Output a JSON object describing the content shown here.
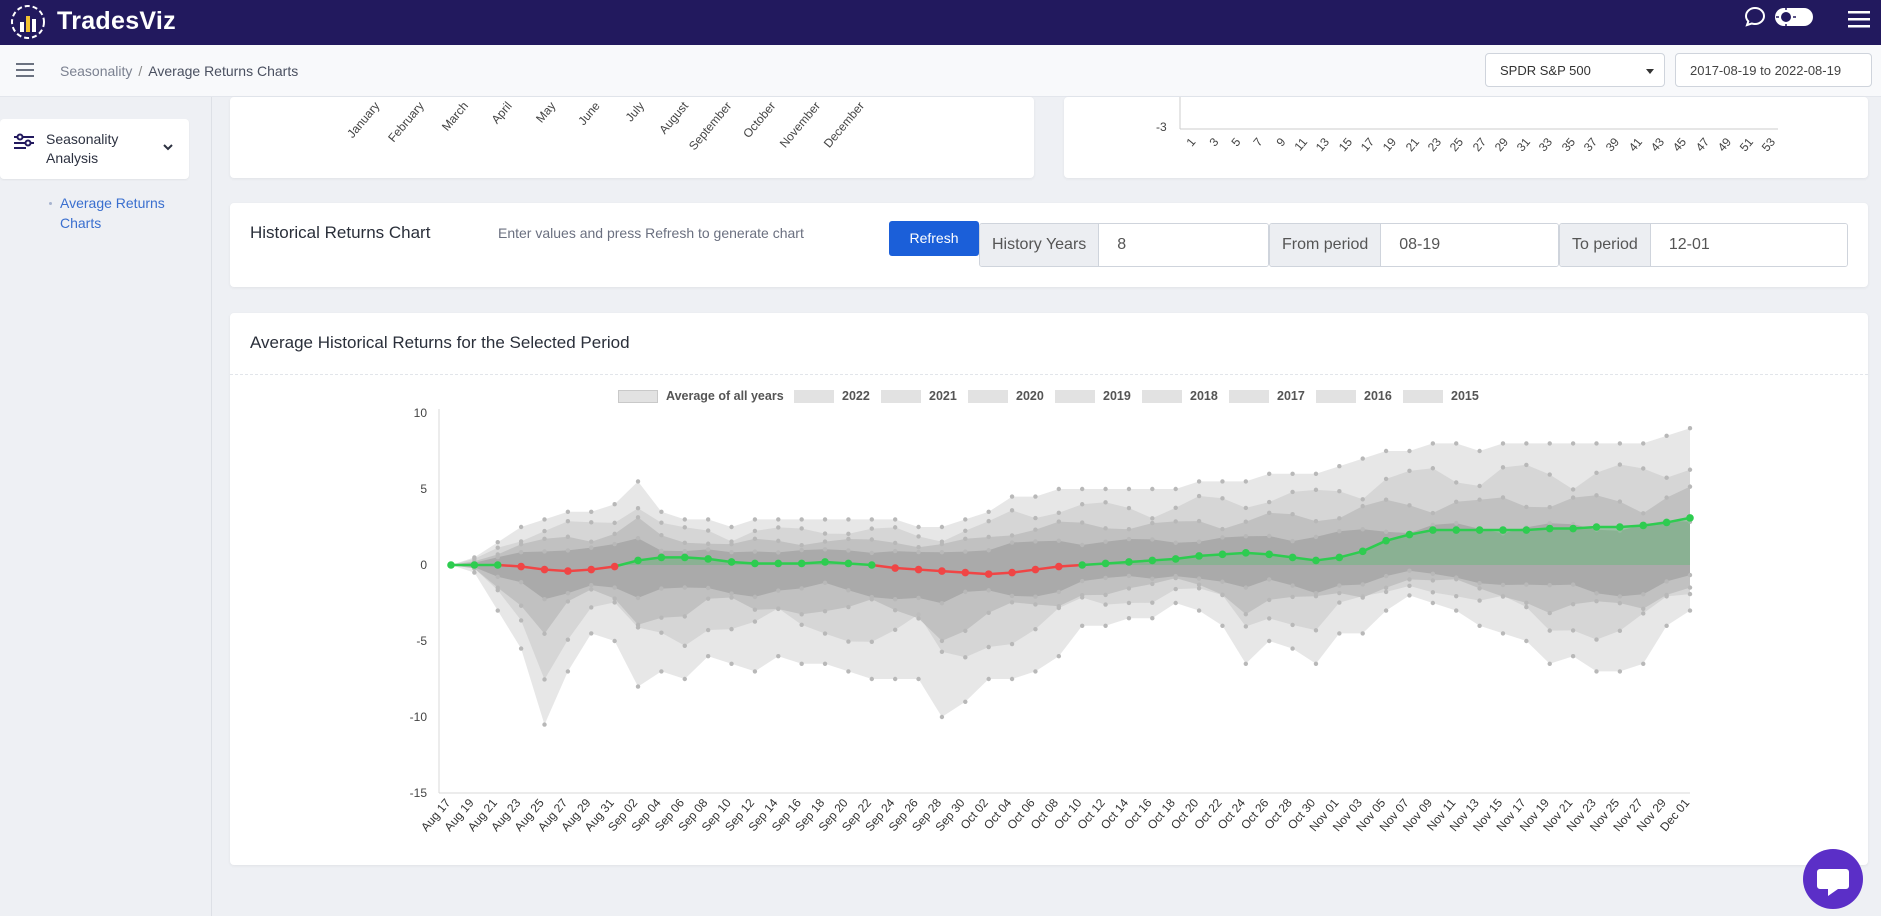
{
  "app": {
    "brand": "TradesViz"
  },
  "breadcrumb": {
    "parent": "Seasonality",
    "separator": "/",
    "current": "Average Returns Charts"
  },
  "symbol_select": {
    "value": "SPDR S&P 500"
  },
  "date_range": {
    "value": "2017-08-19 to 2022-08-19"
  },
  "sidebar": {
    "section_label": "Seasonality Analysis",
    "items": [
      {
        "label": "Average Returns Charts"
      }
    ]
  },
  "monthly_chart_partial": {
    "months": [
      "January",
      "February",
      "March",
      "April",
      "May",
      "June",
      "July",
      "August",
      "September",
      "October",
      "November",
      "December"
    ]
  },
  "weekly_chart_partial": {
    "y_tick": "-3",
    "weeks": [
      "1",
      "3",
      "5",
      "7",
      "9",
      "11",
      "13",
      "15",
      "17",
      "19",
      "21",
      "23",
      "25",
      "27",
      "29",
      "31",
      "33",
      "35",
      "37",
      "39",
      "41",
      "43",
      "45",
      "47",
      "49",
      "51",
      "53"
    ]
  },
  "historical_form": {
    "title": "Historical Returns Chart",
    "hint": "Enter values and press Refresh to generate chart",
    "refresh_label": "Refresh",
    "history_years_label": "History Years",
    "history_years_value": "8",
    "from_label": "From period",
    "from_value": "08-19",
    "to_label": "To period",
    "to_value": "12-01"
  },
  "chart_section": {
    "title": "Average Historical Returns for the Selected Period"
  },
  "colors": {
    "navbar": "#22195e",
    "primary": "#1b5fd9",
    "positive": "#2ecc50",
    "negative": "#f04545",
    "chat": "#5b2fc7"
  },
  "chart_data": {
    "type": "area",
    "series": [
      {
        "name": "Average of all years"
      },
      {
        "name": "2022"
      },
      {
        "name": "2021"
      },
      {
        "name": "2020"
      },
      {
        "name": "2019"
      },
      {
        "name": "2018"
      },
      {
        "name": "2017"
      },
      {
        "name": "2016"
      },
      {
        "name": "2015"
      }
    ],
    "ylim": [
      -15,
      10
    ],
    "y_ticks": [
      10,
      5,
      0,
      -5,
      -10,
      -15
    ],
    "x_tick_labels": [
      "Aug 17",
      "Aug 19",
      "Aug 21",
      "Aug 23",
      "Aug 25",
      "Aug 27",
      "Aug 29",
      "Aug 31",
      "Sep 02",
      "Sep 04",
      "Sep 06",
      "Sep 08",
      "Sep 10",
      "Sep 12",
      "Sep 14",
      "Sep 16",
      "Sep 18",
      "Sep 20",
      "Sep 22",
      "Sep 24",
      "Sep 26",
      "Sep 28",
      "Sep 30",
      "Oct 02",
      "Oct 04",
      "Oct 06",
      "Oct 08",
      "Oct 10",
      "Oct 12",
      "Oct 14",
      "Oct 16",
      "Oct 18",
      "Oct 20",
      "Oct 22",
      "Oct 24",
      "Oct 26",
      "Oct 28",
      "Oct 30",
      "Nov 01",
      "Nov 03",
      "Nov 05",
      "Nov 07",
      "Nov 09",
      "Nov 11",
      "Nov 13",
      "Nov 15",
      "Nov 17",
      "Nov 19",
      "Nov 21",
      "Nov 23",
      "Nov 25",
      "Nov 27",
      "Nov 29",
      "Dec 01"
    ],
    "average_values": [
      0,
      0,
      0,
      -0.1,
      -0.3,
      -0.4,
      -0.3,
      -0.1,
      0.3,
      0.5,
      0.5,
      0.4,
      0.2,
      0.1,
      0.1,
      0.1,
      0.2,
      0.1,
      0,
      -0.2,
      -0.3,
      -0.4,
      -0.5,
      -0.6,
      -0.5,
      -0.3,
      -0.1,
      0,
      0.1,
      0.2,
      0.3,
      0.4,
      0.6,
      0.7,
      0.8,
      0.7,
      0.5,
      0.3,
      0.5,
      0.9,
      1.6,
      2.0,
      2.3,
      2.3,
      2.3,
      2.3,
      2.3,
      2.4,
      2.4,
      2.5,
      2.5,
      2.6,
      2.8,
      3.1
    ],
    "upper_envelope": [
      0,
      0.5,
      1.5,
      2.5,
      3.0,
      3.5,
      3.5,
      4.0,
      5.5,
      3.5,
      3.0,
      3.0,
      2.5,
      3.0,
      3.0,
      3.0,
      3.0,
      3.0,
      3.0,
      3.0,
      2.5,
      2.5,
      3.0,
      3.5,
      4.5,
      4.5,
      5.0,
      5.0,
      5.0,
      5.0,
      5.0,
      5.0,
      5.5,
      5.5,
      5.5,
      6.0,
      6.0,
      6.0,
      6.5,
      7.0,
      7.5,
      7.5,
      8.0,
      8.0,
      7.5,
      8.0,
      8.0,
      8.0,
      8.0,
      8.0,
      8.0,
      8.0,
      8.5,
      9.0
    ],
    "lower_envelope": [
      0,
      -0.5,
      -3.0,
      -5.5,
      -10.5,
      -7.0,
      -4.5,
      -5.0,
      -8.0,
      -7.0,
      -7.5,
      -6.0,
      -6.5,
      -7.0,
      -6.0,
      -6.5,
      -6.5,
      -7.0,
      -7.5,
      -7.5,
      -7.5,
      -10.0,
      -9.0,
      -7.5,
      -7.5,
      -7.0,
      -6.0,
      -4.0,
      -4.0,
      -3.5,
      -3.5,
      -2.5,
      -3.0,
      -4.0,
      -6.5,
      -5.0,
      -5.5,
      -6.5,
      -4.5,
      -4.5,
      -3.0,
      -2.0,
      -2.5,
      -3.0,
      -4.0,
      -4.5,
      -5.0,
      -6.5,
      -6.0,
      -7.0,
      -7.0,
      -6.5,
      -4.0,
      -3.0
    ],
    "grid": false,
    "legend_position": "top-center"
  }
}
